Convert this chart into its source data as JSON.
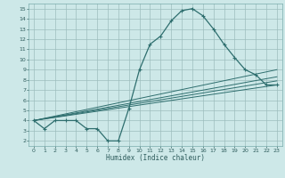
{
  "xlabel": "Humidex (Indice chaleur)",
  "background_color": "#cde8e8",
  "grid_color": "#9dbdbd",
  "line_color": "#2e6e6e",
  "xlim": [
    -0.5,
    23.5
  ],
  "ylim": [
    1.5,
    15.5
  ],
  "xticks": [
    0,
    1,
    2,
    3,
    4,
    5,
    6,
    7,
    8,
    9,
    10,
    11,
    12,
    13,
    14,
    15,
    16,
    17,
    18,
    19,
    20,
    21,
    22,
    23
  ],
  "yticks": [
    2,
    3,
    4,
    5,
    6,
    7,
    8,
    9,
    10,
    11,
    12,
    13,
    14,
    15
  ],
  "main_x": [
    0,
    1,
    2,
    3,
    4,
    5,
    6,
    7,
    8,
    9,
    10,
    11,
    12,
    13,
    14,
    15,
    16,
    17,
    18,
    19,
    20,
    21,
    22,
    23
  ],
  "main_y": [
    4.0,
    3.2,
    4.0,
    4.0,
    4.0,
    3.2,
    3.2,
    2.0,
    2.0,
    5.2,
    9.0,
    11.5,
    12.3,
    13.8,
    14.8,
    15.0,
    14.3,
    13.0,
    11.5,
    10.2,
    9.0,
    8.5,
    7.5,
    7.5
  ],
  "line2_y_end": 9.0,
  "line3_y_end": 8.3,
  "line4_y_end": 7.9,
  "line5_y_end": 7.5,
  "line_y_start": 4.0
}
